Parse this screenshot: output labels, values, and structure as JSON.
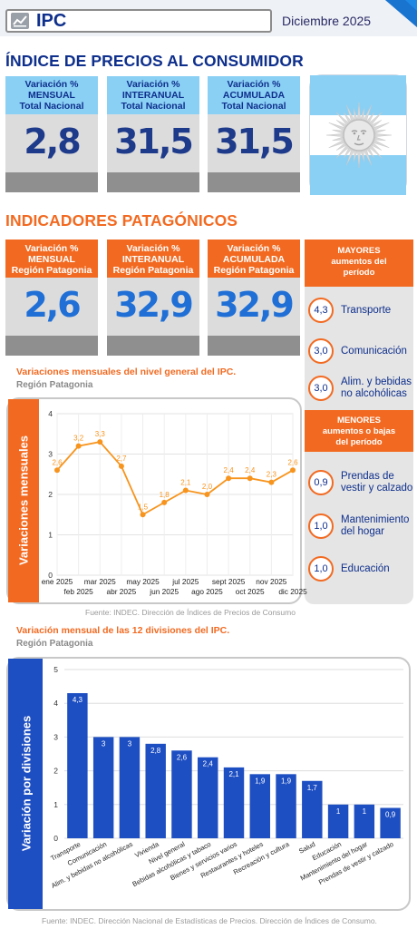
{
  "header": {
    "title": "IPC",
    "date": "Diciembre  2025"
  },
  "section_national": {
    "title": "ÍNDICE DE PRECIOS AL CONSUMIDOR",
    "cards": [
      {
        "line1": "Variación %",
        "line2": "MENSUAL",
        "line3": "Total Nacional",
        "value": "2,8"
      },
      {
        "line1": "Variación %",
        "line2": "INTERANUAL",
        "line3": "Total Nacional",
        "value": "31,5"
      },
      {
        "line1": "Variación %",
        "line2": "ACUMULADA",
        "line3": "Total Nacional",
        "value": "31,5"
      }
    ]
  },
  "section_patagonia": {
    "title": "INDICADORES PATAGÓNICOS",
    "cards": [
      {
        "line1": "Variación %",
        "line2": "MENSUAL",
        "line3": "Región Patagonia",
        "value": "2,6"
      },
      {
        "line1": "Variación %",
        "line2": "INTERANUAL",
        "line3": "Región Patagonia",
        "value": "32,9"
      },
      {
        "line1": "Variación %",
        "line2": "ACUMULADA",
        "line3": "Región Patagonia",
        "value": "32,9"
      }
    ]
  },
  "side_panel": {
    "mayores_title": [
      "MAYORES",
      "aumentos del",
      "período"
    ],
    "mayores": [
      {
        "value": "4,3",
        "label": "Transporte"
      },
      {
        "value": "3,0",
        "label": "Comunicación"
      },
      {
        "value": "3,0",
        "label": "Alim. y bebidas no alcohólicas"
      }
    ],
    "menores_title": [
      "MENORES",
      "aumentos o bajas",
      "del período"
    ],
    "menores": [
      {
        "value": "0,9",
        "label": "Prendas de vestir y calzado"
      },
      {
        "value": "1,0",
        "label": "Mantenimiento del hogar"
      },
      {
        "value": "1,0",
        "label": "Educación"
      }
    ]
  },
  "line_caption": {
    "title": "Variaciones mensuales del nivel general del IPC.",
    "subtitle": "Región Patagonia",
    "source": "Fuente: INDEC. Dirección de Índices de Precios de Consumo"
  },
  "bar_caption": {
    "title": "Variación mensual de las 12 divisiones del IPC.",
    "subtitle": "Región Patagonia",
    "source": "Fuente: INDEC. Dirección Nacional de Estadísticas de Precios. Dirección de Índices de Consumo."
  },
  "colors": {
    "navy": "#0e2f8c",
    "orange": "#f26a21",
    "light_blue": "#8ad0f5",
    "bar_blue": "#1e4fc2"
  },
  "chart_data": [
    {
      "type": "line",
      "ylabel": "Variaciones mensuales",
      "x": [
        "ene 2025",
        "feb 2025",
        "mar 2025",
        "abr 2025",
        "may 2025",
        "jun 2025",
        "jul 2025",
        "ago 2025",
        "sept 2025",
        "oct 2025",
        "nov 2025",
        "dic 2025"
      ],
      "y": [
        2.6,
        3.2,
        3.3,
        2.7,
        1.5,
        1.8,
        2.1,
        2.0,
        2.4,
        2.4,
        2.3,
        2.6
      ],
      "data_labels": [
        "2,6",
        "3,2",
        "3,3",
        "2,7",
        "1,5",
        "1,8",
        "2,1",
        "2,0",
        "2,4",
        "2,4",
        "2,3",
        "2,6"
      ],
      "yticks": [
        "0",
        "1",
        "2",
        "3",
        "4"
      ],
      "ylim": [
        0,
        4
      ],
      "grid": true
    },
    {
      "type": "bar",
      "ylabel": "Variación por divisiones",
      "categories": [
        "Transporte",
        "Comunicación",
        "Alim. y bebidas no alcohólicas",
        "Vivienda",
        "Nivel general",
        "Bebidas alcohólicas y tabaco",
        "Bienes y servicios varios",
        "Restaurantes y hoteles",
        "Recreación y cultura",
        "Salud",
        "Educación",
        "Mantenimiento del hogar",
        "Prendas de vestir y calzado"
      ],
      "values": [
        4.3,
        3.0,
        3.0,
        2.8,
        2.6,
        2.4,
        2.1,
        1.9,
        1.9,
        1.7,
        1.0,
        1.0,
        0.9
      ],
      "data_labels": [
        "4,3",
        "3",
        "3",
        "2,8",
        "2,6",
        "2,4",
        "2,1",
        "1,9",
        "1,9",
        "1,7",
        "1",
        "1",
        "0,9"
      ],
      "yticks": [
        "0",
        "1",
        "2",
        "3",
        "4",
        "5"
      ],
      "ylim": [
        0,
        5
      ],
      "grid": true
    }
  ]
}
